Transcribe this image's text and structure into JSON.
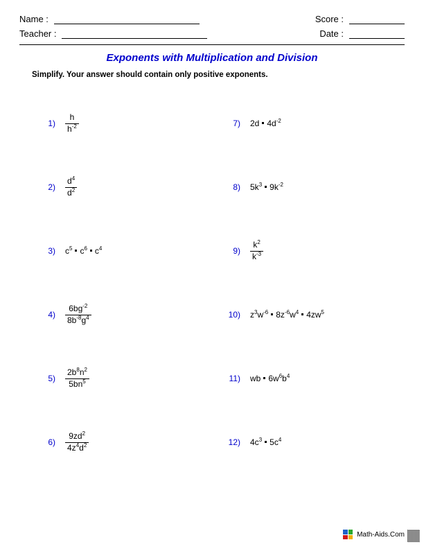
{
  "header": {
    "name_label": "Name :",
    "teacher_label": "Teacher :",
    "score_label": "Score :",
    "date_label": "Date :"
  },
  "title": "Exponents with Multiplication and Division",
  "instructions": "Simplify. Your answer should contain only positive exponents.",
  "problems": [
    {
      "n": "1)",
      "html": "<span class='frac'><span class='num'>h</span><span class='den'>h<sup>-2</sup></span></span>"
    },
    {
      "n": "2)",
      "html": "<span class='frac'><span class='num'>d<sup>4</sup></span><span class='den'>d<sup>2</sup></span></span>"
    },
    {
      "n": "3)",
      "html": "c<sup>5</sup><span class='dot'></span>c<sup>6</sup><span class='dot'></span>c<sup>4</sup>"
    },
    {
      "n": "4)",
      "html": "<span class='frac'><span class='num'>6bg<sup>-2</sup></span><span class='den'>8b<sup>-8</sup>g<sup>4</sup></span></span>"
    },
    {
      "n": "5)",
      "html": "<span class='frac'><span class='num'>2b<sup>8</sup>n<sup>2</sup></span><span class='den'>5bn<sup>5</sup></span></span>"
    },
    {
      "n": "6)",
      "html": "<span class='frac'><span class='num'>9zd<sup>2</sup></span><span class='den'>4z<sup>4</sup>d<sup>2</sup></span></span>"
    },
    {
      "n": "7)",
      "html": "2d<span class='dot'></span>4d<sup>-2</sup>"
    },
    {
      "n": "8)",
      "html": "5k<sup>3</sup><span class='dot'></span>9k<sup>-2</sup>"
    },
    {
      "n": "9)",
      "html": "<span class='frac'><span class='num'>k<sup>2</sup></span><span class='den'>k<sup>-3</sup></span></span>"
    },
    {
      "n": "10)",
      "html": "z<sup>3</sup>w<sup>-6</sup><span class='dot'></span>8z<sup>-6</sup>w<sup>4</sup><span class='dot'></span>4zw<sup>5</sup>"
    },
    {
      "n": "11)",
      "html": "wb<span class='dot'></span>6w<sup>6</sup>b<sup>4</sup>"
    },
    {
      "n": "12)",
      "html": "4c<sup>3</sup><span class='dot'></span>5c<sup>4</sup>"
    }
  ],
  "footer": {
    "site": "Math-Aids.Com",
    "icon_colors": [
      "#1e62c9",
      "#2aa82a",
      "#d11919",
      "#f0b000"
    ]
  },
  "colors": {
    "title_color": "#0000cc",
    "number_color": "#0000cc",
    "text_color": "#000000",
    "bg": "#ffffff"
  }
}
